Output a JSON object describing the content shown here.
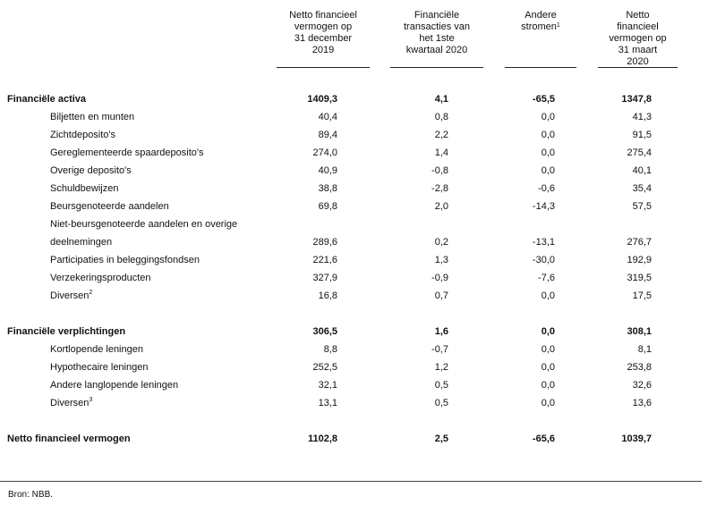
{
  "columns": [
    {
      "label": "Netto financieel vermogen op 31 december 2019",
      "lines": [
        "Netto financieel",
        "vermogen op",
        "31 december",
        "2019"
      ]
    },
    {
      "label": "Financiële transacties van het 1ste kwartaal 2020",
      "lines": [
        "Financiële",
        "transacties van",
        "het 1ste",
        "kwartaal 2020"
      ]
    },
    {
      "label": "Andere stromen¹",
      "lines": [
        "Andere",
        "stromen"
      ],
      "footnote": "1"
    },
    {
      "label": "Netto financieel vermogen op 31 maart 2020",
      "lines": [
        "Netto",
        "financieel",
        "vermogen op",
        "31 maart",
        "2020"
      ]
    }
  ],
  "rows": [
    {
      "label": "Financiële activa",
      "type": "bold",
      "values": [
        "1409,3",
        "4,1",
        "-65,5",
        "1347,8"
      ]
    },
    {
      "label": "Biljetten en munten",
      "type": "ind",
      "values": [
        "40,4",
        "0,8",
        "0,0",
        "41,3"
      ]
    },
    {
      "label": "Zichtdeposito's",
      "type": "ind",
      "values": [
        "89,4",
        "2,2",
        "0,0",
        "91,5"
      ]
    },
    {
      "label": "Gereglementeerde spaardeposito's",
      "type": "ind",
      "values": [
        "274,0",
        "1,4",
        "0,0",
        "275,4"
      ]
    },
    {
      "label": "Overige deposito's",
      "type": "ind",
      "values": [
        "40,9",
        "-0,8",
        "0,0",
        "40,1"
      ]
    },
    {
      "label": "Schuldbewijzen",
      "type": "ind",
      "values": [
        "38,8",
        "-2,8",
        "-0,6",
        "35,4"
      ]
    },
    {
      "label": "Beursgenoteerde aandelen",
      "type": "ind",
      "values": [
        "69,8",
        "2,0",
        "-14,3",
        "57,5"
      ]
    },
    {
      "label": "Niet-beursgenoteerde aandelen en overige",
      "type": "ind",
      "values": []
    },
    {
      "label": "deelnemingen",
      "type": "ind",
      "values": [
        "289,6",
        "0,2",
        "-13,1",
        "276,7"
      ]
    },
    {
      "label": "Participaties in beleggingsfondsen",
      "type": "ind",
      "values": [
        "221,6",
        "1,3",
        "-30,0",
        "192,9"
      ]
    },
    {
      "label": "Verzekeringsproducten",
      "type": "ind",
      "values": [
        "327,9",
        "-0,9",
        "-7,6",
        "319,5"
      ]
    },
    {
      "label": "Diversen",
      "footnote": "2",
      "type": "ind",
      "values": [
        "16,8",
        "0,7",
        "0,0",
        "17,5"
      ]
    },
    {
      "label": "Financiële verplichtingen",
      "type": "bold",
      "values": [
        "306,5",
        "1,6",
        "0,0",
        "308,1"
      ]
    },
    {
      "label": "Kortlopende leningen",
      "type": "ind",
      "values": [
        "8,8",
        "-0,7",
        "0,0",
        "8,1"
      ]
    },
    {
      "label": "Hypothecaire leningen",
      "type": "ind",
      "values": [
        "252,5",
        "1,2",
        "0,0",
        "253,8"
      ]
    },
    {
      "label": "Andere langlopende leningen",
      "type": "ind",
      "values": [
        "32,1",
        "0,5",
        "0,0",
        "32,6"
      ]
    },
    {
      "label": "Diversen",
      "footnote": "3",
      "type": "ind",
      "values": [
        "13,1",
        "0,5",
        "0,0",
        "13,6"
      ]
    },
    {
      "label": "Netto financieel vermogen",
      "type": "bold",
      "values": [
        "1102,8",
        "2,5",
        "-65,6",
        "1039,7"
      ]
    }
  ],
  "source": "Bron: NBB."
}
